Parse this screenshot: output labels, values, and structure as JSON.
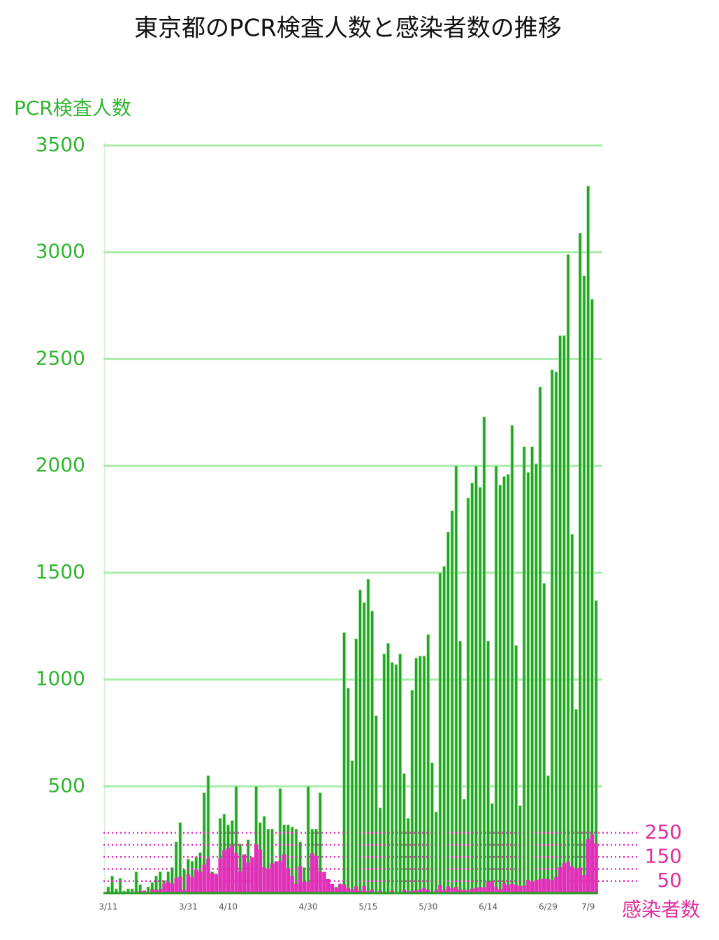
{
  "chart_data": {
    "type": "bar",
    "title": "東京都のPCR検査人数と感染者数の推移",
    "y_label": "PCR検査人数",
    "y2_label": "感染者数",
    "categories": [
      "3/11",
      null,
      null,
      null,
      null,
      null,
      null,
      null,
      null,
      null,
      null,
      null,
      null,
      null,
      null,
      null,
      null,
      null,
      null,
      null,
      "3/31",
      null,
      null,
      null,
      null,
      null,
      null,
      null,
      null,
      null,
      "4/10",
      null,
      null,
      null,
      null,
      null,
      null,
      null,
      null,
      null,
      null,
      null,
      null,
      null,
      null,
      null,
      null,
      null,
      null,
      null,
      "4/30",
      null,
      null,
      null,
      null,
      null,
      null,
      null,
      null,
      null,
      null,
      null,
      null,
      null,
      null,
      "5/15",
      null,
      null,
      null,
      null,
      null,
      null,
      null,
      null,
      null,
      null,
      null,
      null,
      null,
      null,
      "5/30",
      null,
      null,
      null,
      null,
      null,
      null,
      null,
      null,
      null,
      null,
      null,
      null,
      null,
      null,
      "6/14",
      null,
      null,
      null,
      null,
      null,
      null,
      null,
      null,
      null,
      null,
      null,
      null,
      null,
      null,
      "6/29",
      null,
      null,
      null,
      null,
      null,
      null,
      null,
      null,
      null,
      "7/9",
      null,
      null
    ],
    "series": [
      {
        "name": "PCR検査人数",
        "color": "#22a322",
        "values": [
          30,
          80,
          20,
          70,
          10,
          20,
          20,
          100,
          40,
          10,
          30,
          50,
          80,
          100,
          60,
          100,
          120,
          240,
          330,
          110,
          160,
          150,
          170,
          190,
          470,
          550,
          100,
          90,
          350,
          370,
          320,
          340,
          500,
          230,
          160,
          250,
          150,
          500,
          330,
          360,
          300,
          300,
          140,
          490,
          320,
          320,
          310,
          300,
          240,
          120,
          500,
          300,
          300,
          470,
          100,
          60,
          40,
          30,
          20,
          1220,
          960,
          620,
          1190,
          1420,
          1360,
          1470,
          1320,
          830,
          400,
          1120,
          1170,
          1080,
          1070,
          1120,
          560,
          350,
          950,
          1100,
          1110,
          1110,
          1210,
          610,
          380,
          1500,
          1530,
          1690,
          1790,
          2000,
          1180,
          440,
          1850,
          1920,
          2000,
          1900,
          2230,
          1180,
          420,
          2000,
          1910,
          1950,
          1960,
          2190,
          1160,
          410,
          2090,
          1970,
          2090,
          2010,
          2370,
          1450,
          550,
          2450,
          2440,
          2610,
          2610,
          2990,
          1680,
          860,
          3090,
          2890,
          3310,
          2780,
          1370
        ]
      },
      {
        "name": "感染者数",
        "color": "#e030b8",
        "axis": "y2",
        "values": [
          7,
          2,
          5,
          3,
          5,
          1,
          2,
          7,
          7,
          11,
          2,
          16,
          12,
          17,
          41,
          47,
          40,
          63,
          68,
          13,
          78,
          66,
          97,
          89,
          118,
          143,
          83,
          80,
          144,
          178,
          189,
          197,
          166,
          91,
          161,
          127,
          149,
          201,
          181,
          107,
          102,
          123,
          132,
          134,
          161,
          103,
          72,
          39,
          112,
          47,
          46,
          165,
          154,
          91,
          87,
          58,
          38,
          23,
          39,
          36,
          22,
          15,
          28,
          10,
          30,
          9,
          14,
          5,
          10,
          5,
          5,
          11,
          3,
          2,
          14,
          8,
          10,
          11,
          15,
          22,
          14,
          5,
          13,
          34,
          12,
          28,
          20,
          26,
          14,
          13,
          12,
          18,
          22,
          25,
          24,
          47,
          48,
          27,
          16,
          41,
          35,
          39,
          35,
          29,
          31,
          55,
          48,
          54,
          57,
          60,
          58,
          54,
          67,
          107,
          124,
          131,
          111,
          102,
          106,
          75,
          224,
          243,
          206
        ]
      }
    ],
    "ylim": [
      0,
      3500
    ],
    "yticks": [
      500,
      1000,
      1500,
      2000,
      2500,
      3000,
      3500
    ],
    "y2lim": [
      0,
      3100
    ],
    "y2ticks": [
      50,
      150,
      250
    ],
    "y2minor_ticks": [
      100,
      200
    ],
    "grid": true
  }
}
